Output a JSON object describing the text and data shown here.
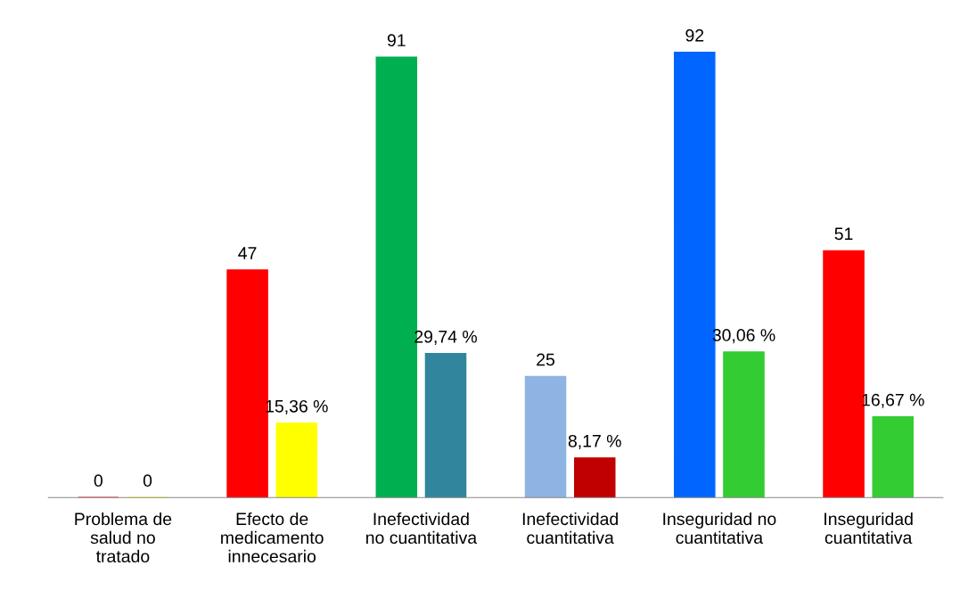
{
  "chart_data": {
    "type": "bar",
    "categories": [
      "Problema de\nsalud no\ntratado",
      "Efecto de\nmedicamento\ninnecesario",
      "Inefectividad\nno cuantitativa",
      "Inefectividad\ncuantitativa",
      "Inseguridad no\ncuantitativa",
      "Inseguridad\ncuantitativa"
    ],
    "series": [
      {
        "colors": [
          "#ff0000",
          "#ff0000",
          "#00b050",
          "#8eb4e3",
          "#0066ff",
          "#ff0000"
        ],
        "values": [
          0,
          47,
          91,
          25,
          92,
          51
        ],
        "value_labels": [
          "0",
          "47",
          "91",
          "25",
          "92",
          "51"
        ]
      },
      {
        "colors": [
          "#ffff00",
          "#ffff00",
          "#31859c",
          "#c00000",
          "#33cc33",
          "#33cc33"
        ],
        "values": [
          0,
          15.36,
          29.74,
          8.17,
          30.06,
          16.67
        ],
        "value_labels": [
          "0",
          "15,36 %",
          "29,74 %",
          "8,17 %",
          "30,06 %",
          "16,67 %"
        ]
      }
    ],
    "tick_labels": "x",
    "grid": false,
    "legend": false
  }
}
